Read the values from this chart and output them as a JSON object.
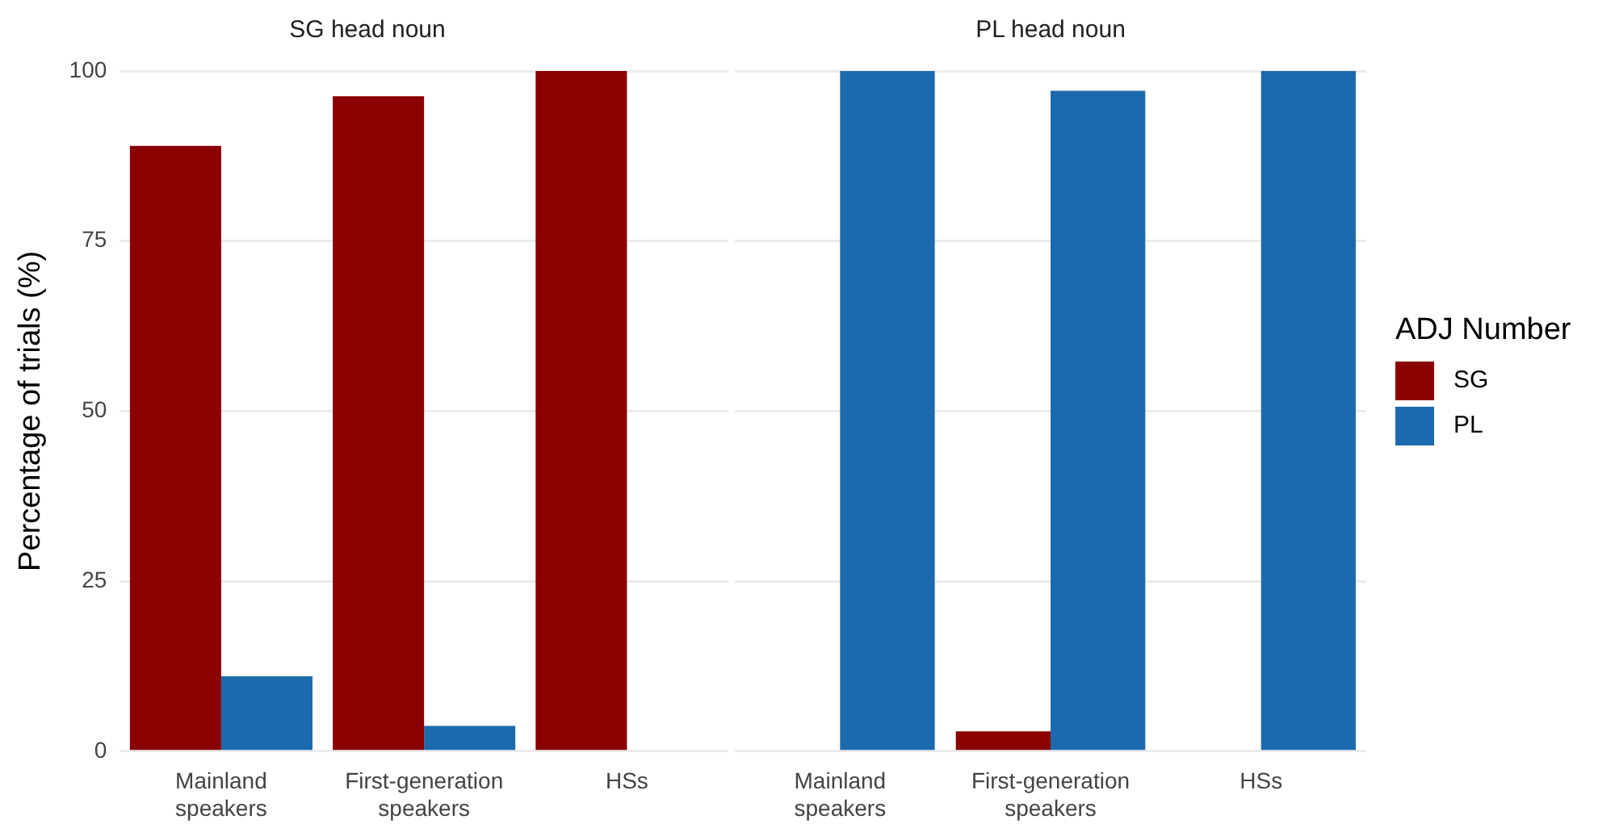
{
  "chart_data": [
    {
      "type": "bar",
      "title": "SG head noun",
      "ylabel": "Percentage of trials (%)",
      "categories": [
        "Mainland speakers",
        "First-generation speakers",
        "HSs"
      ],
      "series": [
        {
          "color": "#8b0000",
          "values": [
            89,
            96.3,
            100
          ]
        },
        {
          "color": "#1c6aad",
          "values": [
            11,
            3.7,
            null
          ]
        }
      ],
      "ylim": [
        0,
        100
      ],
      "yticks": [
        0,
        25,
        50,
        75,
        100
      ],
      "grid": "y",
      "legend": false
    },
    {
      "type": "bar",
      "title": "PL head noun",
      "legend_title": "ADJ Number",
      "categories": [
        "Mainland speakers",
        "First-generation speakers",
        "HSs"
      ],
      "series": [
        {
          "name": "SG",
          "color": "#8b0000",
          "values": [
            null,
            2.9,
            null
          ]
        },
        {
          "name": "PL",
          "color": "#1c6aad",
          "values": [
            100,
            97.1,
            100
          ]
        }
      ],
      "ylim": [
        0,
        100
      ],
      "yticks": [
        0,
        25,
        50,
        75,
        100
      ],
      "grid": "y",
      "legend": "right",
      "tick_labels": "x"
    }
  ]
}
